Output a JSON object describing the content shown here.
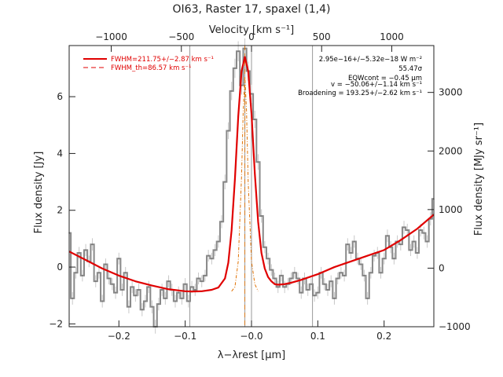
{
  "chart_data": {
    "type": "line",
    "title": "OI63, Raster 17, spaxel (1,4)",
    "xlabel": "λ−λrest [µm]",
    "ylabel": "Flux density [Jy]",
    "top_xlabel": "Velocity [km s⁻¹]",
    "right_ylabel": "Flux density [MJy sr⁻¹]",
    "xlim": [
      -0.275,
      0.275
    ],
    "ylim": [
      -2.1,
      7.8
    ],
    "top_xlim": [
      -1300,
      1300
    ],
    "right_ylim": [
      -1000,
      3800
    ],
    "x_ticks": [
      -0.2,
      -0.1,
      0.0,
      0.1,
      0.2
    ],
    "x_tick_labels": [
      "−0.2",
      "−0.1",
      "−0.0",
      "0.1",
      "0.2"
    ],
    "y_ticks": [
      -2,
      0,
      2,
      4,
      6
    ],
    "y_tick_labels": [
      "−2",
      "0",
      "2",
      "4",
      "6"
    ],
    "top_ticks": [
      -1000,
      -500,
      0,
      500,
      1000
    ],
    "top_tick_labels": [
      "−1000",
      "−500",
      "0",
      "500",
      "1000"
    ],
    "right_ticks": [
      -1000,
      0,
      1000,
      2000,
      3000
    ],
    "right_tick_labels": [
      "−1000",
      "0",
      "1000",
      "2000",
      "3000"
    ],
    "vlines": [
      -0.093,
      -0.01,
      0.0,
      0.092
    ],
    "grid": false,
    "legend_position": "top-left",
    "legend": [
      {
        "label": "FWHM=211.75+/−2.87 km s⁻¹",
        "style": "solid"
      },
      {
        "label": "FWHM_th=86.57 km s⁻¹",
        "style": "dashed"
      }
    ],
    "annotations": [
      "2.95e−16+/−5.32e−18 W m⁻²",
      "55.47σ",
      "EQWcont = −0.45 µm",
      "v = −50.06+/−1.14 km s⁻¹",
      "Broadening = 193.25+/−2.62 km s⁻¹"
    ],
    "series": [
      {
        "style": "step",
        "x": [
          -0.275,
          -0.27,
          -0.265,
          -0.26,
          -0.255,
          -0.25,
          -0.245,
          -0.24,
          -0.235,
          -0.23,
          -0.225,
          -0.22,
          -0.215,
          -0.21,
          -0.205,
          -0.2,
          -0.195,
          -0.19,
          -0.185,
          -0.18,
          -0.175,
          -0.17,
          -0.165,
          -0.16,
          -0.155,
          -0.15,
          -0.145,
          -0.14,
          -0.135,
          -0.13,
          -0.125,
          -0.12,
          -0.115,
          -0.11,
          -0.105,
          -0.1,
          -0.095,
          -0.09,
          -0.085,
          -0.08,
          -0.075,
          -0.07,
          -0.065,
          -0.06,
          -0.055,
          -0.05,
          -0.045,
          -0.04,
          -0.035,
          -0.03,
          -0.025,
          -0.02,
          -0.015,
          -0.01,
          -0.005,
          0.0,
          0.005,
          0.01,
          0.015,
          0.02,
          0.025,
          0.03,
          0.035,
          0.04,
          0.045,
          0.05,
          0.055,
          0.06,
          0.065,
          0.07,
          0.075,
          0.08,
          0.085,
          0.09,
          0.095,
          0.1,
          0.105,
          0.11,
          0.115,
          0.12,
          0.125,
          0.13,
          0.135,
          0.14,
          0.145,
          0.15,
          0.155,
          0.16,
          0.165,
          0.17,
          0.175,
          0.18,
          0.185,
          0.19,
          0.195,
          0.2,
          0.205,
          0.21,
          0.215,
          0.22,
          0.225,
          0.23,
          0.235,
          0.24,
          0.245,
          0.25,
          0.255,
          0.26,
          0.265,
          0.27,
          0.275
        ],
        "y": [
          1.2,
          -1.1,
          -0.2,
          0.5,
          -0.3,
          0.6,
          0.2,
          0.8,
          -0.5,
          -0.2,
          -1.2,
          0.1,
          -0.4,
          -0.6,
          -0.9,
          0.3,
          -0.8,
          -0.2,
          -1.4,
          -0.7,
          -1.0,
          -0.8,
          -1.5,
          -1.2,
          -0.7,
          -1.4,
          -2.1,
          -1.3,
          -0.8,
          -1.1,
          -0.5,
          -0.8,
          -1.2,
          -0.9,
          -1.1,
          -0.6,
          -1.2,
          -0.7,
          -0.8,
          -0.4,
          -0.5,
          -0.3,
          0.4,
          0.3,
          0.6,
          0.9,
          1.6,
          3.0,
          4.8,
          6.2,
          7.0,
          7.6,
          6.4,
          7.7,
          6.9,
          6.1,
          5.2,
          3.7,
          1.8,
          0.7,
          0.3,
          -0.1,
          -0.4,
          -0.7,
          -0.3,
          -0.7,
          -0.6,
          -0.4,
          -0.2,
          -0.4,
          -0.9,
          -0.4,
          -0.8,
          -0.6,
          -1.0,
          -0.9,
          -0.2,
          -0.6,
          -0.8,
          -0.5,
          -1.1,
          -0.4,
          -0.2,
          -0.3,
          0.8,
          0.5,
          0.9,
          0.3,
          0.1,
          -0.3,
          -1.1,
          -0.2,
          0.4,
          0.5,
          -0.2,
          0.3,
          1.1,
          0.7,
          0.3,
          0.9,
          0.8,
          1.4,
          1.3,
          0.6,
          0.9,
          0.5,
          1.3,
          1.2,
          0.9,
          1.7,
          2.4
        ]
      },
      {
        "style": "fit",
        "x": [
          -0.275,
          -0.25,
          -0.225,
          -0.2,
          -0.175,
          -0.15,
          -0.125,
          -0.1,
          -0.09,
          -0.075,
          -0.06,
          -0.05,
          -0.04,
          -0.035,
          -0.03,
          -0.025,
          -0.02,
          -0.015,
          -0.01,
          -0.005,
          0.0,
          0.005,
          0.01,
          0.015,
          0.02,
          0.025,
          0.03,
          0.035,
          0.04,
          0.05,
          0.06,
          0.075,
          0.1,
          0.125,
          0.15,
          0.175,
          0.2,
          0.225,
          0.25,
          0.275
        ],
        "y": [
          0.55,
          0.25,
          -0.05,
          -0.3,
          -0.5,
          -0.65,
          -0.78,
          -0.85,
          -0.86,
          -0.85,
          -0.8,
          -0.72,
          -0.4,
          0.15,
          1.3,
          3.1,
          5.3,
          6.9,
          7.4,
          6.9,
          5.4,
          3.3,
          1.6,
          0.5,
          -0.05,
          -0.35,
          -0.5,
          -0.6,
          -0.62,
          -0.6,
          -0.55,
          -0.45,
          -0.25,
          0.0,
          0.2,
          0.4,
          0.6,
          0.95,
          1.35,
          1.85
        ]
      },
      {
        "style": "thermal",
        "x": [
          -0.03,
          -0.025,
          -0.02,
          -0.015,
          -0.0125,
          -0.01,
          -0.0075,
          -0.005,
          0.0,
          0.005,
          0.01
        ],
        "y": [
          -0.85,
          -0.7,
          0.2,
          3.2,
          5.5,
          6.7,
          5.5,
          3.0,
          0.2,
          -0.6,
          -0.85
        ]
      }
    ]
  }
}
